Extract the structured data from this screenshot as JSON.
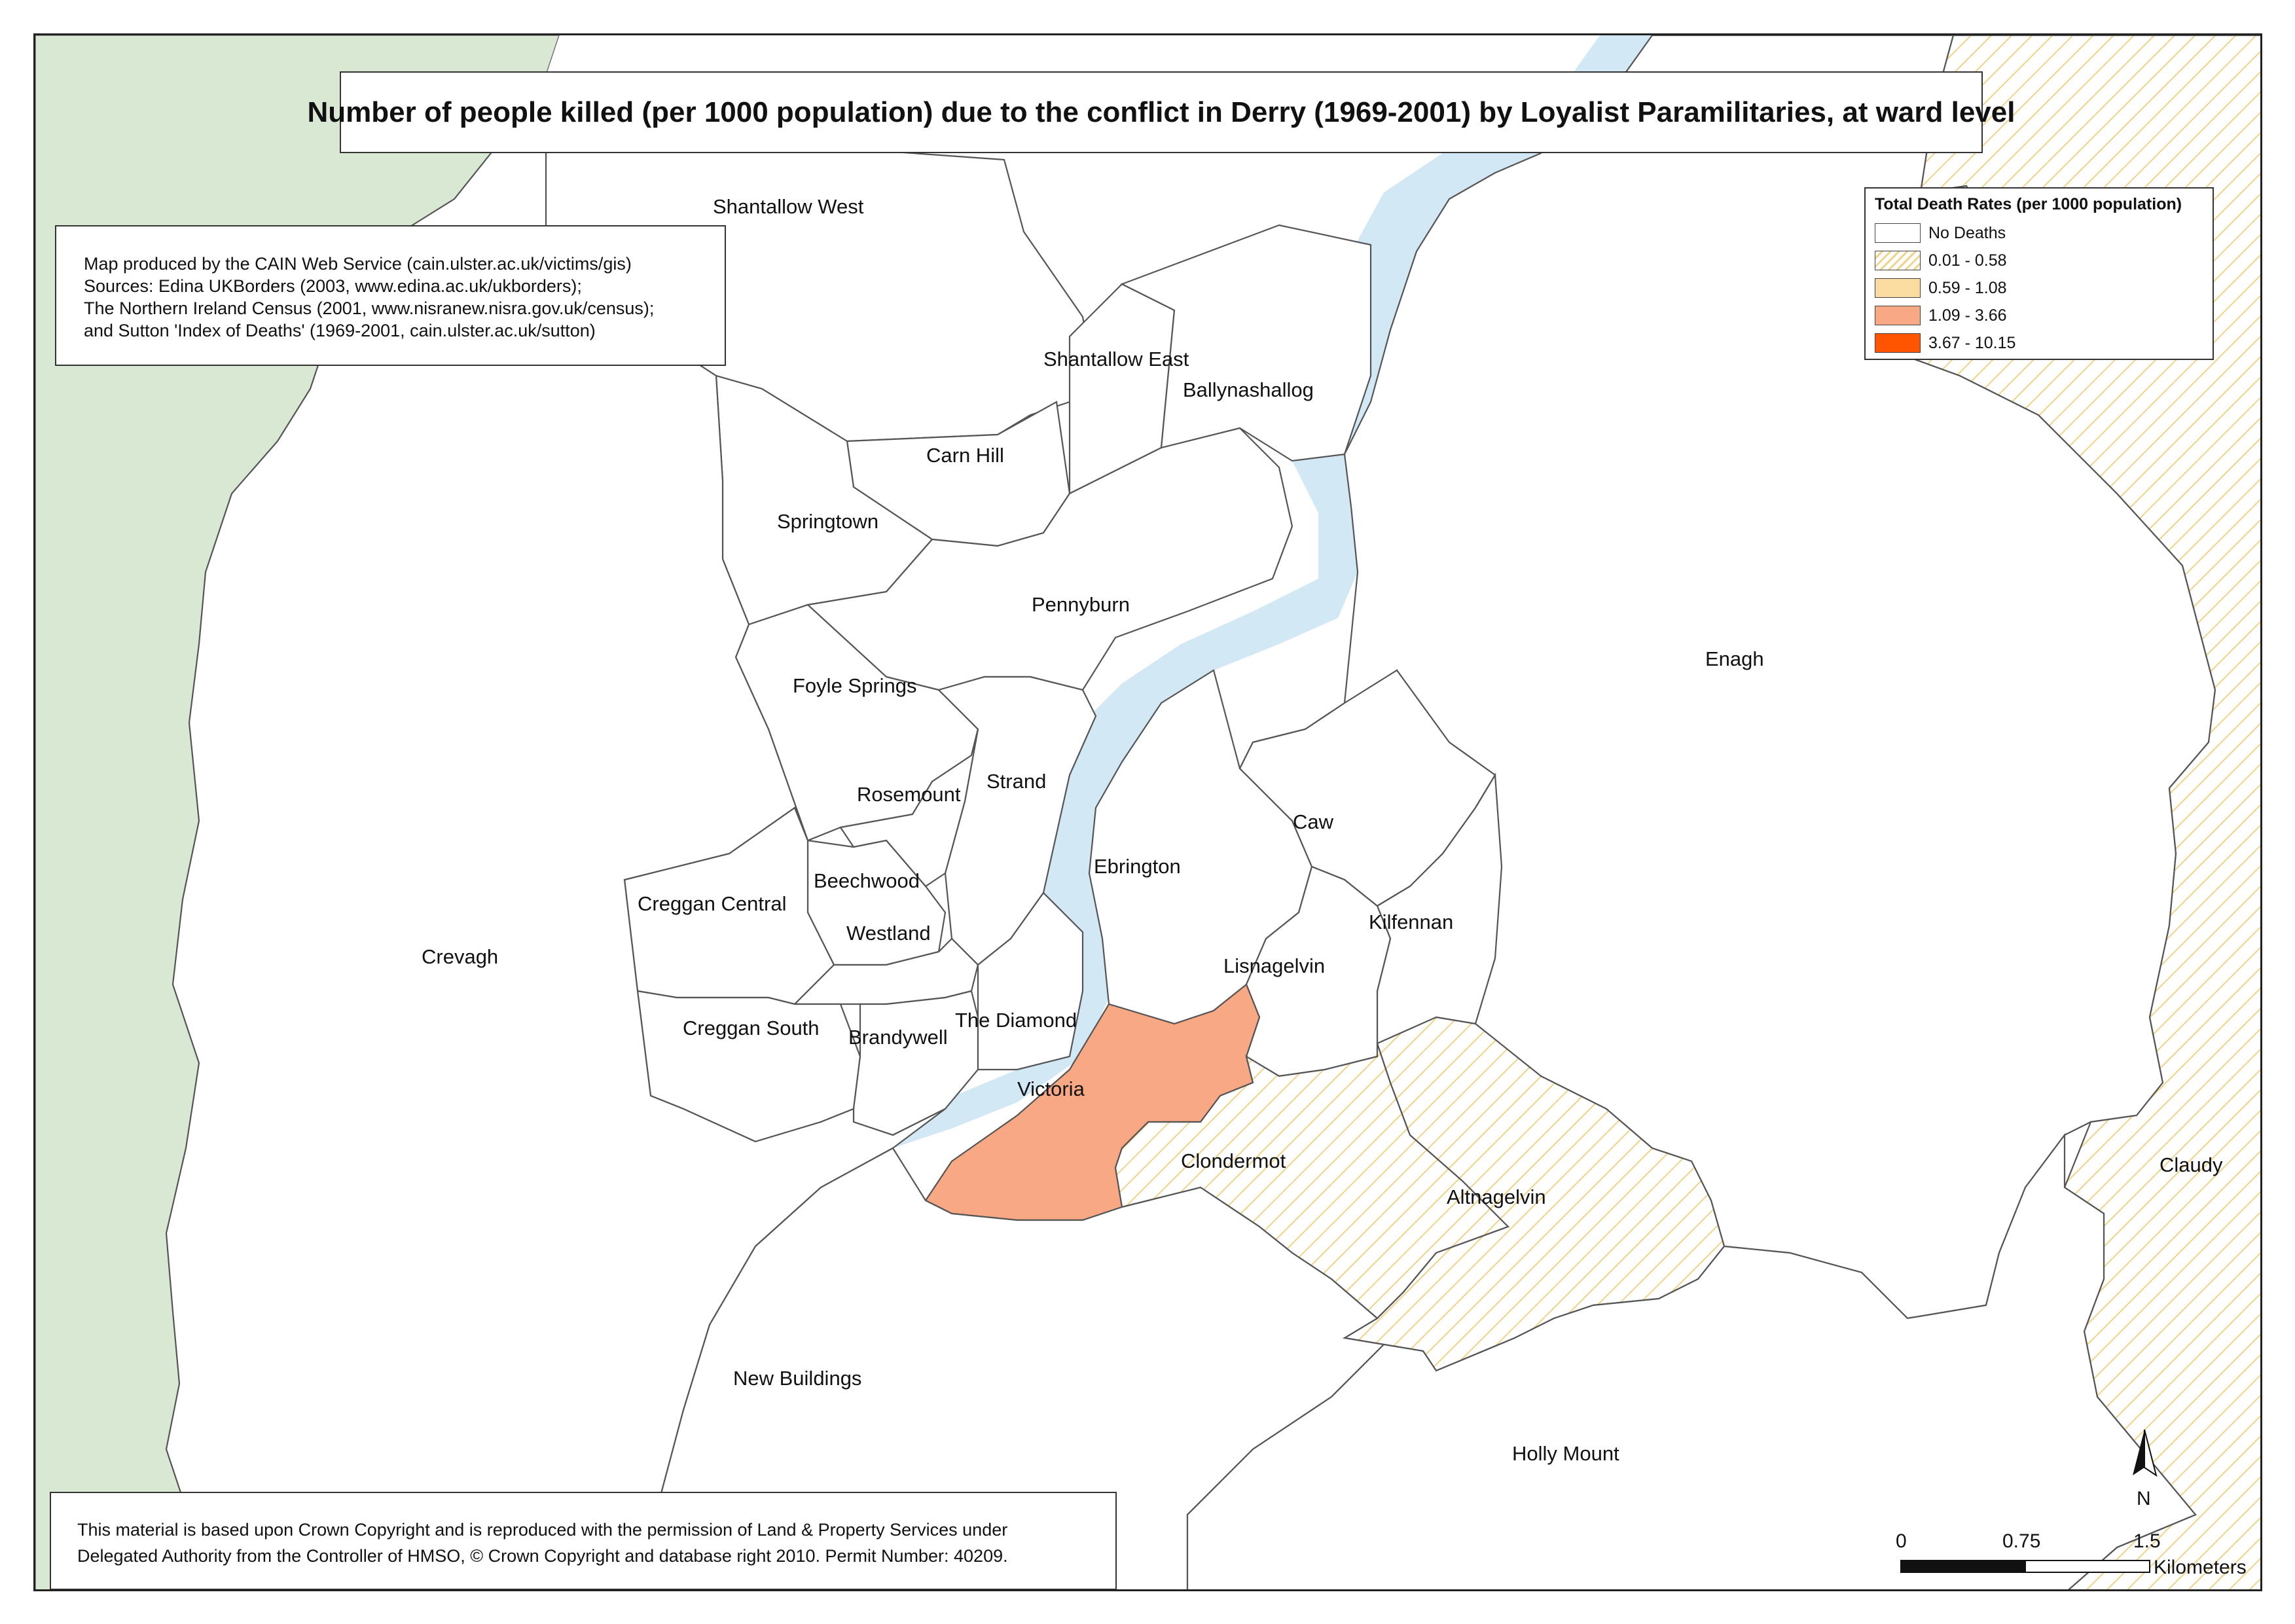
{
  "title": "Number of people killed (per 1000 population) due to the conflict in Derry (1969-2001) by Loyalist Paramilitaries, at ward level",
  "credits": [
    "Map produced by the CAIN Web Service (cain.ulster.ac.uk/victims/gis)",
    "Sources: Edina UKBorders (2003, www.edina.ac.uk/ukborders);",
    "The Northern Ireland Census (2001, www.nisranew.nisra.gov.uk/census);",
    "and Sutton 'Index of Deaths' (1969-2001, cain.ulster.ac.uk/sutton)"
  ],
  "copyright": [
    "This material is based upon Crown Copyright and is reproduced with the permission of Land & Property Services under",
    "Delegated Authority from the Controller of HMSO, © Crown Copyright and database right 2010. Permit Number: 40209."
  ],
  "legend": {
    "title": "Total Death Rates (per 1000 population)",
    "classes": [
      {
        "label": "No Deaths",
        "fill": "#ffffff",
        "style": "solid"
      },
      {
        "label": "0.01 - 0.58",
        "fill": "#f5d98a",
        "style": "hatch"
      },
      {
        "label": "0.59 - 1.08",
        "fill": "#fbdca0",
        "style": "solid"
      },
      {
        "label": "1.09 - 3.66",
        "fill": "#f9a884",
        "style": "solid"
      },
      {
        "label": "3.67 - 10.15",
        "fill": "#ff5500",
        "style": "solid"
      }
    ]
  },
  "wards": [
    {
      "name": "Shantallow West",
      "rate_class": "No Deaths"
    },
    {
      "name": "Shantallow East",
      "rate_class": "No Deaths"
    },
    {
      "name": "Ballynashallog",
      "rate_class": "No Deaths"
    },
    {
      "name": "Carn Hill",
      "rate_class": "No Deaths"
    },
    {
      "name": "Springtown",
      "rate_class": "No Deaths"
    },
    {
      "name": "Pennyburn",
      "rate_class": "No Deaths"
    },
    {
      "name": "Foyle Springs",
      "rate_class": "No Deaths"
    },
    {
      "name": "Strand",
      "rate_class": "No Deaths"
    },
    {
      "name": "Rosemount",
      "rate_class": "No Deaths"
    },
    {
      "name": "Beechwood",
      "rate_class": "No Deaths"
    },
    {
      "name": "Creggan Central",
      "rate_class": "No Deaths"
    },
    {
      "name": "Westland",
      "rate_class": "No Deaths"
    },
    {
      "name": "Creggan South",
      "rate_class": "No Deaths"
    },
    {
      "name": "Brandywell",
      "rate_class": "No Deaths"
    },
    {
      "name": "The Diamond",
      "rate_class": "No Deaths"
    },
    {
      "name": "Victoria",
      "rate_class": "1.09 - 3.66"
    },
    {
      "name": "Crevagh",
      "rate_class": "No Deaths"
    },
    {
      "name": "Ebrington",
      "rate_class": "No Deaths"
    },
    {
      "name": "Caw",
      "rate_class": "No Deaths"
    },
    {
      "name": "Kilfennan",
      "rate_class": "No Deaths"
    },
    {
      "name": "Lisnagelvin",
      "rate_class": "No Deaths"
    },
    {
      "name": "Enagh",
      "rate_class": "No Deaths"
    },
    {
      "name": "Clondermot",
      "rate_class": "0.01 - 0.58"
    },
    {
      "name": "Altnagelvin",
      "rate_class": "0.01 - 0.58"
    },
    {
      "name": "Claudy",
      "rate_class": "0.01 - 0.58"
    },
    {
      "name": "New Buildings",
      "rate_class": "No Deaths"
    },
    {
      "name": "Holly Mount",
      "rate_class": "No Deaths"
    }
  ],
  "scale_bar": {
    "ticks": [
      "0",
      "0.75",
      "1.5"
    ],
    "unit": "Kilometers"
  },
  "north_arrow": {
    "label": "N"
  },
  "colors": {
    "river": "#d2e8f5",
    "land_outside": "#d9e8d3",
    "victoria": "#f9a884",
    "hatch": "#f0d38a"
  }
}
